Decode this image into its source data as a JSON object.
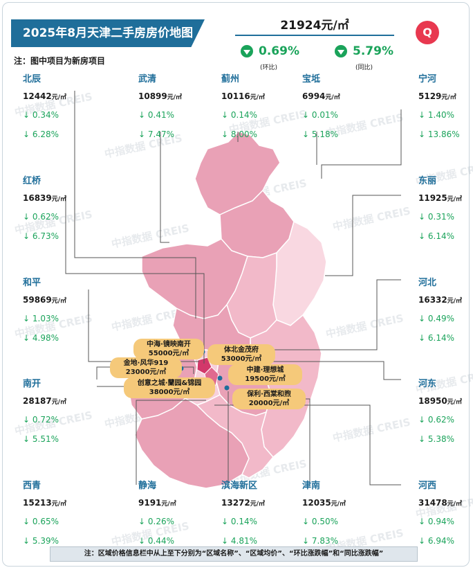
{
  "title": "2025年8月天津二手房房价地图",
  "note": "注：图中项目为新房项目",
  "average": {
    "price": "21924元/㎡",
    "mom_value": "0.69%",
    "mom_label": "(环比)",
    "yoy_value": "5.79%",
    "yoy_label": "(同比)"
  },
  "logo_text": "Q",
  "districts": [
    {
      "name": "北辰",
      "price": "12442",
      "unit": "元/㎡",
      "mom": "↓ 0.34%",
      "yoy": "↓ 6.28%"
    },
    {
      "name": "武清",
      "price": "10899",
      "unit": "元/㎡",
      "mom": "↓ 0.41%",
      "yoy": "↓ 7.47%"
    },
    {
      "name": "蓟州",
      "price": "10116",
      "unit": "元/㎡",
      "mom": "↓ 0.14%",
      "yoy": "↓ 8.00%"
    },
    {
      "name": "宝坻",
      "price": "6994",
      "unit": "元/㎡",
      "mom": "↓ 0.01%",
      "yoy": "↓ 5.18%"
    },
    {
      "name": "宁河",
      "price": "5129",
      "unit": "元/㎡",
      "mom": "↓ 1.40%",
      "yoy": "↓ 13.86%"
    },
    {
      "name": "红桥",
      "price": "16839",
      "unit": "元/㎡",
      "mom": "↓ 0.62%",
      "yoy": "↓ 6.73%"
    },
    {
      "name": "东丽",
      "price": "11925",
      "unit": "元/㎡",
      "mom": "↓ 0.31%",
      "yoy": "↓ 6.14%"
    },
    {
      "name": "和平",
      "price": "59869",
      "unit": "元/㎡",
      "mom": "↓ 1.03%",
      "yoy": "↓ 4.98%"
    },
    {
      "name": "河北",
      "price": "16332",
      "unit": "元/㎡",
      "mom": "↓ 0.49%",
      "yoy": "↓ 6.14%"
    },
    {
      "name": "南开",
      "price": "28187",
      "unit": "元/㎡",
      "mom": "↓ 0.72%",
      "yoy": "↓ 5.51%"
    },
    {
      "name": "河东",
      "price": "18950",
      "unit": "元/㎡",
      "mom": "↓ 0.62%",
      "yoy": "↓ 5.38%"
    },
    {
      "name": "西青",
      "price": "15213",
      "unit": "元/㎡",
      "mom": "↓ 0.65%",
      "yoy": "↓ 5.39%"
    },
    {
      "name": "静海",
      "price": "9191",
      "unit": "元/㎡",
      "mom": "↓ 0.26%",
      "yoy": "↓ 0.44%"
    },
    {
      "name": "滨海新区",
      "price": "13272",
      "unit": "元/㎡",
      "mom": "↓ 0.14%",
      "yoy": "↓ 4.81%"
    },
    {
      "name": "津南",
      "price": "12035",
      "unit": "元/㎡",
      "mom": "↓ 0.50%",
      "yoy": "↓ 7.83%"
    },
    {
      "name": "河西",
      "price": "31478",
      "unit": "元/㎡",
      "mom": "↓ 0.94%",
      "yoy": "↓ 6.94%"
    }
  ],
  "projects": [
    {
      "name": "中海·镜映南开",
      "price": "55000元/㎡"
    },
    {
      "name": "体北金茂府",
      "price": "53000元/㎡"
    },
    {
      "name": "金地·风华919",
      "price": "23000元/㎡"
    },
    {
      "name": "中建·理想城",
      "price": "19500元/㎡"
    },
    {
      "name": "创意之城·蘭园&锦园",
      "price": "38000元/㎡"
    },
    {
      "name": "保利·西棠和煦",
      "price": "20000元/㎡"
    }
  ],
  "watermark": "中指数据 CREIS",
  "footer": "注：区域价格信息栏中从上至下分别为“区域名称”、“区域均价”、“环比涨跌幅”和“同比涨跌幅”",
  "colors": {
    "accent": "#1f6e9a",
    "down": "#1aa35a",
    "map_dark": "#e9a1b6",
    "map_mid": "#f2b9c9",
    "map_light": "#f9d8e1",
    "core": "#d2386a",
    "project_bubble": "#f5c97a"
  }
}
